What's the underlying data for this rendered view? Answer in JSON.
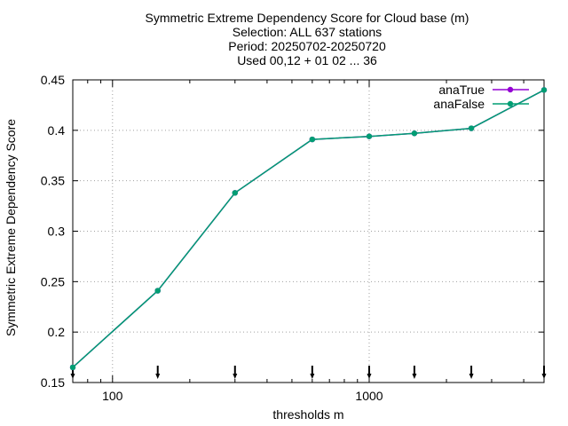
{
  "chart_data": {
    "type": "line",
    "title_lines": [
      "Symmetric Extreme Dependency Score  for Cloud base (m)",
      "Selection: ALL    637 stations",
      "Period: 20250702-20250720",
      "Used 00,12 + 01 02 ... 36"
    ],
    "xlabel": "thresholds m",
    "ylabel": "Symmetric Extreme Dependency Score",
    "xscale": "log",
    "xlim": [
      70,
      4800
    ],
    "ylim": [
      0.15,
      0.45
    ],
    "xticks": [
      {
        "value": 100,
        "label": "100"
      },
      {
        "value": 1000,
        "label": "1000"
      }
    ],
    "yticks": [
      {
        "value": 0.15,
        "label": "0.15"
      },
      {
        "value": 0.2,
        "label": "0.2"
      },
      {
        "value": 0.25,
        "label": "0.25"
      },
      {
        "value": 0.3,
        "label": "0.3"
      },
      {
        "value": 0.35,
        "label": "0.35"
      },
      {
        "value": 0.4,
        "label": "0.4"
      },
      {
        "value": 0.45,
        "label": "0.45"
      }
    ],
    "grid": true,
    "legend_position": "top-right",
    "threshold_markers": [
      70,
      150,
      300,
      600,
      1000,
      1500,
      2500,
      4800
    ],
    "series": [
      {
        "name": "anaTrue",
        "color": "#9400d3",
        "x": [
          70,
          150,
          300,
          600,
          1000,
          1500,
          2500,
          4800
        ],
        "values": [
          0.165,
          0.241,
          0.338,
          0.391,
          0.394,
          0.397,
          0.402,
          0.44
        ]
      },
      {
        "name": "anaFalse",
        "color": "#009e73",
        "x": [
          70,
          150,
          300,
          600,
          1000,
          1500,
          2500,
          4800
        ],
        "values": [
          0.165,
          0.241,
          0.338,
          0.391,
          0.394,
          0.397,
          0.402,
          0.44
        ]
      }
    ]
  }
}
